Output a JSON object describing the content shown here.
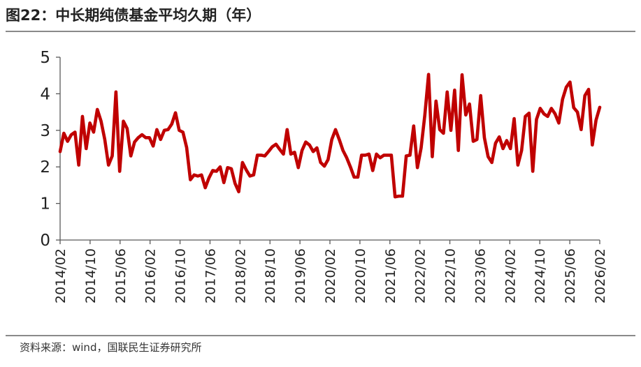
{
  "header": {
    "title": "图22：中长期纯债基金平均久期（年）"
  },
  "footer": {
    "source": "资料来源：wind，国联民生证券研究所"
  },
  "chart_data": {
    "type": "line",
    "title": "中长期纯债基金平均久期（年）",
    "xlabel": "",
    "ylabel": "",
    "ylim": [
      0,
      5
    ],
    "yticks": [
      "0",
      "1",
      "2",
      "3",
      "4",
      "5"
    ],
    "x_start": "2014/02",
    "x_end": "2026/02",
    "xticks": [
      "2014/02",
      "2014/10",
      "2015/06",
      "2016/02",
      "2016/10",
      "2017/06",
      "2018/02",
      "2018/10",
      "2019/06",
      "2020/02",
      "2020/10",
      "2021/06",
      "2022/02",
      "2022/10",
      "2023/06",
      "2024/02",
      "2024/10",
      "2025/06",
      "2026/02"
    ],
    "series": [
      {
        "name": "平均久期",
        "color": "#c00000",
        "values": [
          2.42,
          2.92,
          2.7,
          2.88,
          2.95,
          2.05,
          3.38,
          2.5,
          3.2,
          2.95,
          3.57,
          3.25,
          2.75,
          2.05,
          2.3,
          4.05,
          1.88,
          3.25,
          3.05,
          2.3,
          2.68,
          2.8,
          2.88,
          2.8,
          2.8,
          2.57,
          3.02,
          2.75,
          3.0,
          3.02,
          3.17,
          3.48,
          3.0,
          2.95,
          2.53,
          1.65,
          1.78,
          1.75,
          1.78,
          1.43,
          1.7,
          1.9,
          1.88,
          2.0,
          1.57,
          1.98,
          1.95,
          1.55,
          1.32,
          2.12,
          1.92,
          1.75,
          1.78,
          2.32,
          2.32,
          2.3,
          2.42,
          2.55,
          2.62,
          2.48,
          2.35,
          3.02,
          2.35,
          2.4,
          1.98,
          2.45,
          2.68,
          2.6,
          2.42,
          2.52,
          2.12,
          2.02,
          2.2,
          2.75,
          3.02,
          2.75,
          2.45,
          2.25,
          2.0,
          1.72,
          1.72,
          2.32,
          2.32,
          2.35,
          1.9,
          2.35,
          2.25,
          2.32,
          2.32,
          2.32,
          1.18,
          1.2,
          1.2,
          2.3,
          2.32,
          3.12,
          1.98,
          2.52,
          3.42,
          4.53,
          2.28,
          3.8,
          3.02,
          2.92,
          4.05,
          3.0,
          4.1,
          2.45,
          4.52,
          3.42,
          3.72,
          2.7,
          2.75,
          3.95,
          2.8,
          2.28,
          2.12,
          2.65,
          2.82,
          2.5,
          2.72,
          2.5,
          3.32,
          2.05,
          2.45,
          3.38,
          3.47,
          1.88,
          3.3,
          3.6,
          3.45,
          3.38,
          3.6,
          3.45,
          3.2,
          3.85,
          4.18,
          4.32,
          3.62,
          3.5,
          3.02,
          3.95,
          4.12,
          2.6,
          3.28,
          3.63
        ]
      }
    ],
    "grid": false,
    "legend": "none"
  }
}
